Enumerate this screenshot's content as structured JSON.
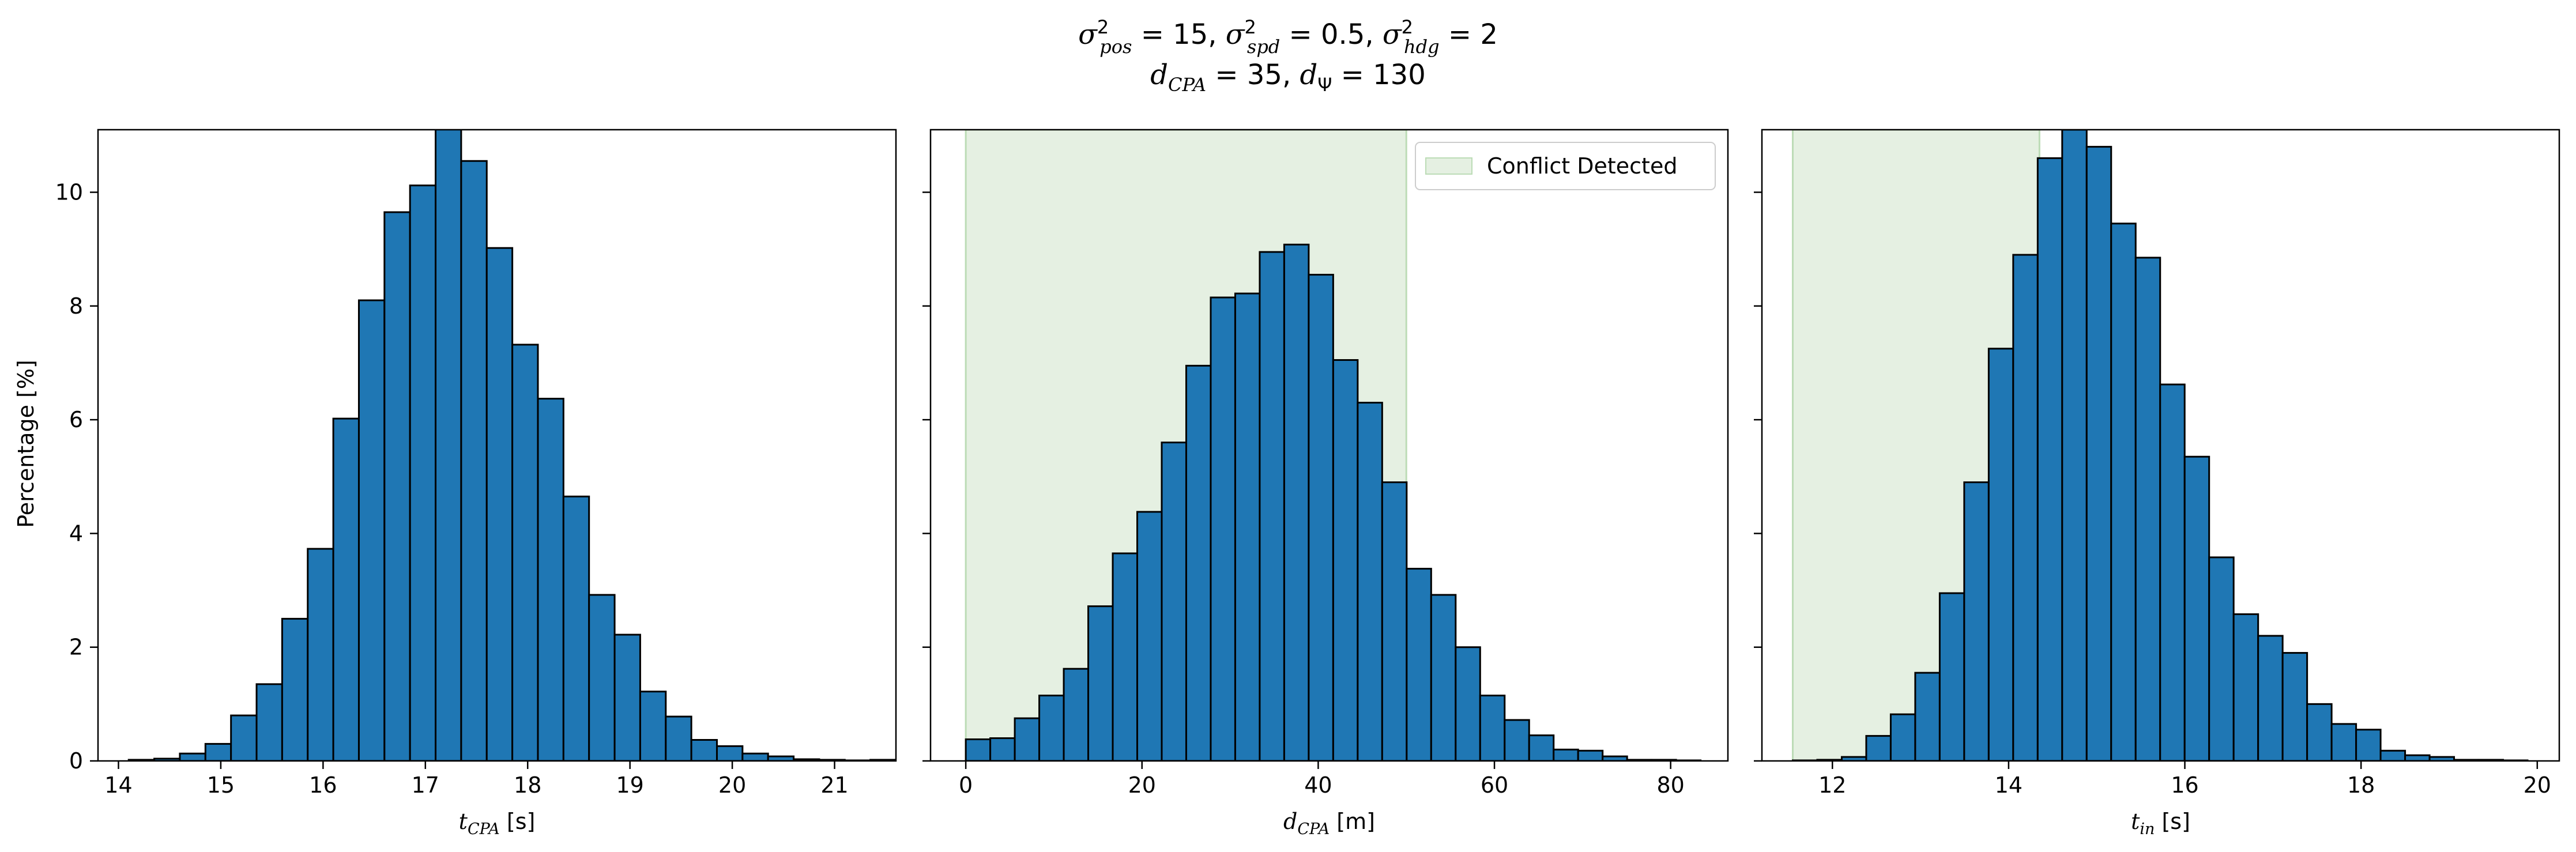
{
  "figure": {
    "title_line1": "σ²pos = 15, σ²spd = 0.5, σ²hdg = 2",
    "title_line2": "dCPA = 35, dΨ = 130",
    "shared_ylabel": "Percentage [%]"
  },
  "colors": {
    "bar_fill": "#1f77b4",
    "bar_edge": "#000000",
    "conflict_fill": "#e5f0e2",
    "conflict_edge": "#bcdcb6",
    "axis": "#000000"
  },
  "chart_data": [
    {
      "type": "bar",
      "xlabel": "tCPA [s]",
      "ylabel": "Percentage [%]",
      "xlim": [
        13.8,
        21.6
      ],
      "ylim": [
        0,
        11.1
      ],
      "xticks": [
        14,
        15,
        16,
        17,
        18,
        19,
        20,
        21
      ],
      "yticks": [
        0,
        2,
        4,
        6,
        8,
        10
      ],
      "bin_start": 14.1,
      "bin_width": 0.25,
      "values": [
        0.02,
        0.04,
        0.13,
        0.3,
        0.8,
        1.35,
        2.5,
        3.73,
        6.02,
        8.1,
        9.65,
        10.12,
        11.15,
        10.55,
        9.02,
        7.32,
        6.37,
        4.65,
        2.92,
        2.22,
        1.22,
        0.78,
        0.37,
        0.26,
        0.13,
        0.08,
        0.03,
        0.02,
        0.01,
        0.02
      ],
      "grid": false
    },
    {
      "type": "bar",
      "xlabel": "dCPA [m]",
      "xlim": [
        -4.0,
        86.5
      ],
      "ylim": [
        0,
        11.1
      ],
      "xticks": [
        0,
        20,
        40,
        60,
        80
      ],
      "yticks": [
        0,
        2,
        4,
        6,
        8,
        10
      ],
      "bin_start": 0.0,
      "bin_width": 2.78,
      "values": [
        0.38,
        0.4,
        0.75,
        1.15,
        1.62,
        2.72,
        3.65,
        4.38,
        5.6,
        6.95,
        8.15,
        8.22,
        8.95,
        9.08,
        8.55,
        7.05,
        6.3,
        4.9,
        3.38,
        2.92,
        2.0,
        1.15,
        0.72,
        0.45,
        0.2,
        0.18,
        0.08,
        0.02,
        0.02,
        0.01
      ],
      "shaded_region": {
        "label": "Conflict Detected",
        "x_from": 0,
        "x_to": 50
      },
      "legend": {
        "label": "Conflict Detected",
        "placement": "top-right"
      },
      "grid": false
    },
    {
      "type": "bar",
      "xlabel": "tin [s]",
      "xlim": [
        11.2,
        20.25
      ],
      "ylim": [
        0,
        11.1
      ],
      "xticks": [
        12,
        14,
        16,
        18,
        20
      ],
      "yticks": [
        0,
        2,
        4,
        6,
        8,
        10
      ],
      "bin_start": 11.55,
      "bin_width": 0.278,
      "values": [
        0.01,
        0.02,
        0.07,
        0.44,
        0.82,
        1.55,
        2.95,
        4.9,
        7.25,
        8.9,
        10.6,
        11.1,
        10.8,
        9.45,
        8.85,
        6.62,
        5.35,
        3.58,
        2.58,
        2.2,
        1.9,
        1.0,
        0.65,
        0.55,
        0.18,
        0.1,
        0.07,
        0.02,
        0.02,
        0.01
      ],
      "shaded_region": {
        "label": "",
        "x_from": 11.55,
        "x_to": 14.35
      },
      "grid": false
    }
  ]
}
